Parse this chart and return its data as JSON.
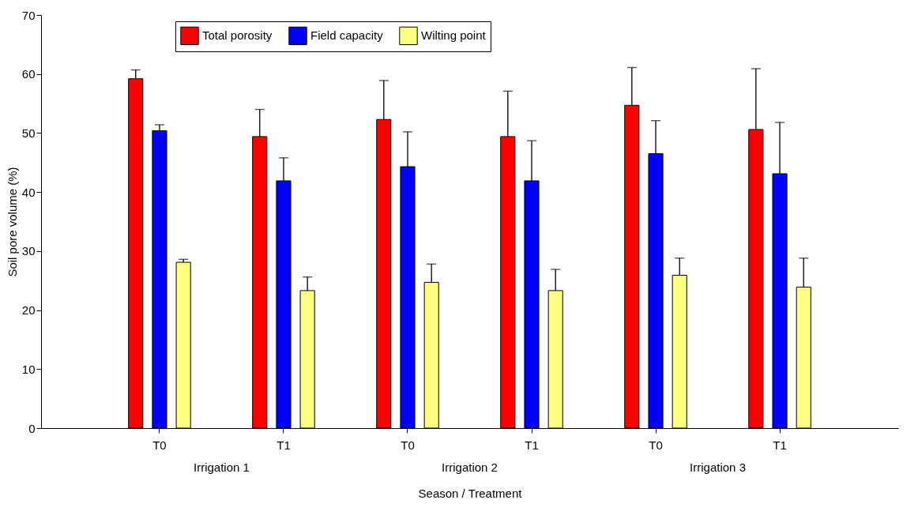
{
  "chart_data": {
    "type": "bar",
    "xlabel": "Season / Treatment",
    "ylabel": "Soil pore volume (%)",
    "categories": [
      "T0",
      "T1",
      "T0",
      "T1",
      "T0",
      "T1"
    ],
    "series": [
      {
        "name": "Total porosity",
        "color": "#ff0000",
        "values": [
          59.2,
          49.4,
          52.3,
          49.4,
          54.7,
          50.6
        ],
        "errors": [
          [
            59.2,
            60.7
          ],
          [
            49.4,
            54.0
          ],
          [
            52.3,
            58.9
          ],
          [
            49.4,
            57.1
          ],
          [
            54.7,
            61.1
          ],
          [
            50.6,
            60.9
          ]
        ]
      },
      {
        "name": "Field capacity",
        "color": "#0000ff",
        "values": [
          50.4,
          41.9,
          44.3,
          41.9,
          46.5,
          43.1
        ],
        "errors": [
          [
            50.4,
            51.4
          ],
          [
            41.9,
            45.8
          ],
          [
            44.3,
            50.2
          ],
          [
            41.9,
            48.7
          ],
          [
            46.5,
            52.1
          ],
          [
            43.1,
            51.8
          ]
        ]
      },
      {
        "name": "Wilting point",
        "color": "#ffff80",
        "values": [
          28.1,
          23.3,
          24.7,
          23.3,
          25.9,
          23.9
        ],
        "errors": [
          [
            28.1,
            28.6
          ],
          [
            23.3,
            25.6
          ],
          [
            24.7,
            27.8
          ],
          [
            23.3,
            26.9
          ],
          [
            25.9,
            28.8
          ],
          [
            23.9,
            28.8
          ]
        ]
      }
    ],
    "annotations": [
      "Irrigation 1",
      "Irrigation 2",
      "Irrigation 3"
    ],
    "ylim": [
      0,
      70
    ],
    "yticks": [
      0,
      10,
      20,
      30,
      40,
      50,
      60,
      70
    ],
    "grid": false,
    "legend": "top"
  }
}
